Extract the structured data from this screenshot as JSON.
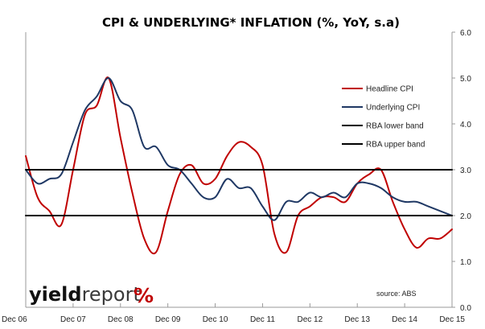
{
  "chart_data": {
    "type": "line",
    "title": "CPI & UNDERLYING* INFLATION (%, YoY, s.a)",
    "xlabel": "",
    "ylabel": "",
    "ylim": [
      0,
      6
    ],
    "yticks": [
      "0.0",
      "1.0",
      "2.0",
      "3.0",
      "4.0",
      "5.0",
      "6.0"
    ],
    "xtick_labels": [
      "Dec 06",
      "Dec 07",
      "Dec 08",
      "Dec 09",
      "Dec 10",
      "Dec 11",
      "Dec 12",
      "Dec 13",
      "Dec 14",
      "Dec 15"
    ],
    "xlim": [
      2006.917,
      2015.917
    ],
    "grid": false,
    "legend_position": "top-right",
    "series": [
      {
        "name": "Headline CPI",
        "color": "#c00000",
        "x": [
          2006.917,
          2007.167,
          2007.417,
          2007.667,
          2007.917,
          2008.167,
          2008.417,
          2008.667,
          2008.917,
          2009.167,
          2009.417,
          2009.667,
          2009.917,
          2010.167,
          2010.417,
          2010.667,
          2010.917,
          2011.167,
          2011.417,
          2011.667,
          2011.917,
          2012.167,
          2012.417,
          2012.667,
          2012.917,
          2013.167,
          2013.417,
          2013.667,
          2013.917,
          2014.167,
          2014.417,
          2014.667,
          2014.917,
          2015.167,
          2015.417,
          2015.667,
          2015.917
        ],
        "y": [
          3.3,
          2.4,
          2.1,
          1.8,
          3.0,
          4.2,
          4.4,
          5.0,
          3.7,
          2.5,
          1.5,
          1.2,
          2.1,
          2.9,
          3.1,
          2.7,
          2.8,
          3.3,
          3.6,
          3.5,
          3.1,
          1.6,
          1.2,
          2.0,
          2.2,
          2.4,
          2.4,
          2.3,
          2.7,
          2.9,
          3.0,
          2.3,
          1.7,
          1.3,
          1.5,
          1.5,
          1.7
        ]
      },
      {
        "name": "Underlying CPI",
        "color": "#1f3864",
        "x": [
          2006.917,
          2007.167,
          2007.417,
          2007.667,
          2007.917,
          2008.167,
          2008.417,
          2008.667,
          2008.917,
          2009.167,
          2009.417,
          2009.667,
          2009.917,
          2010.167,
          2010.417,
          2010.667,
          2010.917,
          2011.167,
          2011.417,
          2011.667,
          2011.917,
          2012.167,
          2012.417,
          2012.667,
          2012.917,
          2013.167,
          2013.417,
          2013.667,
          2013.917,
          2014.167,
          2014.417,
          2014.667,
          2014.917,
          2015.167,
          2015.417,
          2015.667,
          2015.917
        ],
        "y": [
          3.0,
          2.7,
          2.8,
          2.9,
          3.6,
          4.3,
          4.6,
          5.0,
          4.5,
          4.3,
          3.5,
          3.5,
          3.1,
          3.0,
          2.7,
          2.4,
          2.4,
          2.8,
          2.6,
          2.6,
          2.2,
          1.9,
          2.3,
          2.3,
          2.5,
          2.4,
          2.5,
          2.4,
          2.7,
          2.7,
          2.6,
          2.4,
          2.3,
          2.3,
          2.2,
          2.1,
          2.0
        ]
      },
      {
        "name": "RBA lower band",
        "color": "#000000",
        "x": [
          2006.917,
          2015.917
        ],
        "y": [
          2.0,
          2.0
        ]
      },
      {
        "name": "RBA upper band",
        "color": "#000000",
        "x": [
          2006.917,
          2015.917
        ],
        "y": [
          3.0,
          3.0
        ]
      }
    ],
    "annotations": {
      "source": "source: ABS"
    }
  },
  "logo": {
    "word": "yield",
    "word2": "report",
    "symbol": "%"
  }
}
